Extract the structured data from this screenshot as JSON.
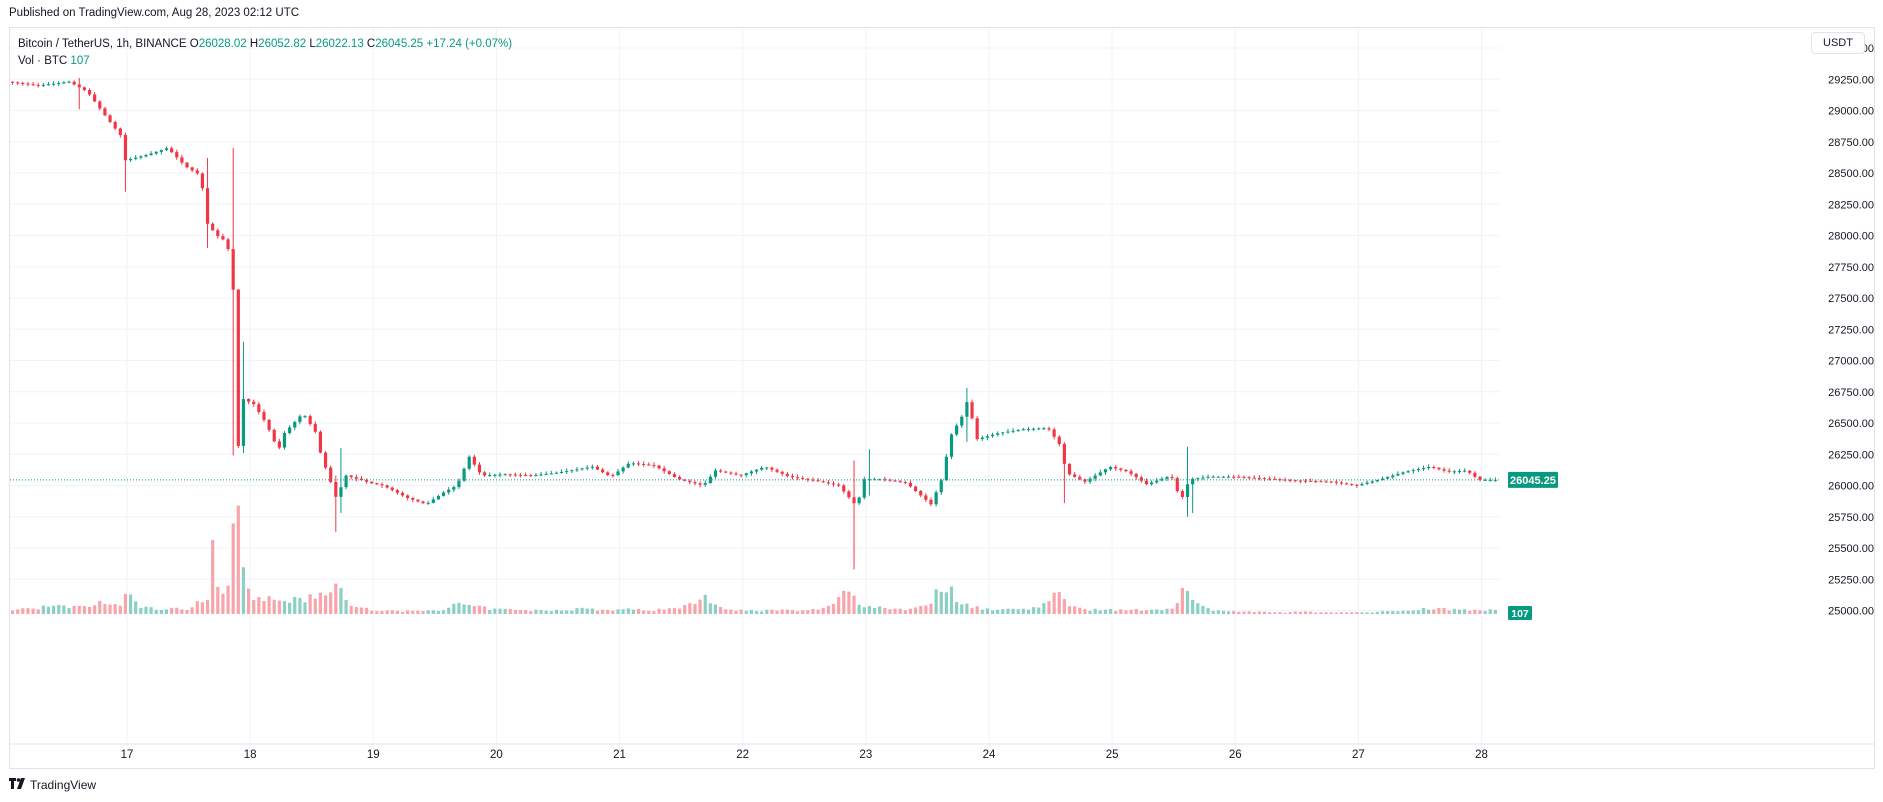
{
  "header": {
    "published": "Published on TradingView.com, Aug 28, 2023 02:12 UTC"
  },
  "legend": {
    "symbol": "Bitcoin / TetherUS, 1h, BINANCE",
    "o_label": "O",
    "o": "26028.02",
    "h_label": "H",
    "h": "26052.82",
    "l_label": "L",
    "l": "26022.13",
    "c_label": "C",
    "c": "26045.25",
    "change": "+17.24 (+0.07%)",
    "vol_label": "Vol · BTC",
    "vol": "107"
  },
  "price_scale": {
    "currency": "USDT"
  },
  "footer": {
    "brand": "TradingView",
    "logo_icon": "tradingview-logo-icon"
  },
  "colors": {
    "up": "#089981",
    "down": "#f23645",
    "up_vol": "#8ccfc3",
    "down_vol": "#f7a5aa",
    "grid": "#f0f3fa"
  },
  "chart_data": {
    "type": "candlestick",
    "title": "Bitcoin / TetherUS, 1h, BINANCE",
    "y_ticks": [
      "29500.00",
      "29250.00",
      "29000.00",
      "28750.00",
      "28500.00",
      "28250.00",
      "28000.00",
      "27750.00",
      "27500.00",
      "27250.00",
      "27000.00",
      "26750.00",
      "26500.00",
      "26250.00",
      "26000.00",
      "25750.00",
      "25500.00",
      "25250.00",
      "25000.00"
    ],
    "ylim": [
      24860,
      29660
    ],
    "x_ticks": [
      "17",
      "18",
      "19",
      "20",
      "21",
      "22",
      "23",
      "24",
      "25",
      "26",
      "27",
      "28"
    ],
    "x_days": [
      17,
      18,
      19,
      20,
      21,
      22,
      23,
      24,
      25,
      26,
      27,
      28
    ],
    "xlim": [
      16.05,
      28.15
    ],
    "last_price": "26045.25",
    "last_volume": "107",
    "price_path": [
      [
        16.05,
        29230
      ],
      [
        16.3,
        29200
      ],
      [
        16.55,
        29230
      ],
      [
        16.7,
        29150
      ],
      [
        16.85,
        28950
      ],
      [
        16.97,
        28800
      ],
      [
        17.0,
        28600
      ],
      [
        17.2,
        28650
      ],
      [
        17.35,
        28700
      ],
      [
        17.5,
        28550
      ],
      [
        17.62,
        28480
      ],
      [
        17.67,
        28100
      ],
      [
        17.75,
        28000
      ],
      [
        17.83,
        27950
      ],
      [
        17.88,
        27700
      ],
      [
        17.9,
        26900
      ],
      [
        17.92,
        26240
      ],
      [
        17.95,
        26700
      ],
      [
        18.05,
        26650
      ],
      [
        18.15,
        26500
      ],
      [
        18.25,
        26280
      ],
      [
        18.3,
        26420
      ],
      [
        18.45,
        26580
      ],
      [
        18.55,
        26430
      ],
      [
        18.6,
        26230
      ],
      [
        18.65,
        26100
      ],
      [
        18.72,
        25900
      ],
      [
        18.8,
        26080
      ],
      [
        19.0,
        26020
      ],
      [
        19.1,
        26000
      ],
      [
        19.3,
        25900
      ],
      [
        19.45,
        25850
      ],
      [
        19.6,
        25950
      ],
      [
        19.7,
        26000
      ],
      [
        19.8,
        26230
      ],
      [
        19.9,
        26080
      ],
      [
        20.1,
        26090
      ],
      [
        20.3,
        26080
      ],
      [
        20.5,
        26100
      ],
      [
        20.8,
        26150
      ],
      [
        20.95,
        26070
      ],
      [
        21.1,
        26180
      ],
      [
        21.3,
        26160
      ],
      [
        21.5,
        26050
      ],
      [
        21.7,
        26000
      ],
      [
        21.8,
        26120
      ],
      [
        22.0,
        26080
      ],
      [
        22.2,
        26150
      ],
      [
        22.4,
        26070
      ],
      [
        22.6,
        26040
      ],
      [
        22.8,
        26000
      ],
      [
        22.95,
        25830
      ],
      [
        23.0,
        26050
      ],
      [
        23.15,
        26050
      ],
      [
        23.35,
        26020
      ],
      [
        23.55,
        25850
      ],
      [
        23.65,
        26080
      ],
      [
        23.7,
        26380
      ],
      [
        23.8,
        26550
      ],
      [
        23.85,
        26690
      ],
      [
        23.92,
        26370
      ],
      [
        24.1,
        26420
      ],
      [
        24.3,
        26450
      ],
      [
        24.5,
        26460
      ],
      [
        24.6,
        26320
      ],
      [
        24.65,
        26100
      ],
      [
        24.8,
        26030
      ],
      [
        25.0,
        26150
      ],
      [
        25.15,
        26110
      ],
      [
        25.3,
        26010
      ],
      [
        25.5,
        26080
      ],
      [
        25.58,
        25880
      ],
      [
        25.65,
        26050
      ],
      [
        25.8,
        26070
      ],
      [
        26.0,
        26070
      ],
      [
        26.2,
        26060
      ],
      [
        26.5,
        26040
      ],
      [
        26.8,
        26030
      ],
      [
        27.0,
        26000
      ],
      [
        27.2,
        26050
      ],
      [
        27.4,
        26110
      ],
      [
        27.6,
        26150
      ],
      [
        27.75,
        26110
      ],
      [
        27.9,
        26120
      ],
      [
        28.0,
        26045
      ],
      [
        28.15,
        26045
      ]
    ],
    "wick_extremes": [
      [
        16.62,
        29260,
        29010
      ],
      [
        16.98,
        28680,
        28350
      ],
      [
        17.65,
        28620,
        27900
      ],
      [
        17.88,
        28700,
        26240
      ],
      [
        17.93,
        27150,
        26260
      ],
      [
        18.7,
        26080,
        25630
      ],
      [
        18.75,
        26300,
        25780
      ],
      [
        22.9,
        26200,
        25330
      ],
      [
        23.02,
        26290,
        25920
      ],
      [
        23.83,
        26780,
        26350
      ],
      [
        24.6,
        26200,
        25860
      ],
      [
        25.6,
        26310,
        25750
      ],
      [
        25.67,
        26020,
        25780
      ]
    ],
    "volume_max_label": 2600,
    "volume_path": [
      [
        16.05,
        90
      ],
      [
        16.4,
        180
      ],
      [
        16.6,
        150
      ],
      [
        16.8,
        260
      ],
      [
        16.95,
        200
      ],
      [
        17.0,
        520
      ],
      [
        17.1,
        160
      ],
      [
        17.3,
        110
      ],
      [
        17.5,
        130
      ],
      [
        17.6,
        330
      ],
      [
        17.65,
        330
      ],
      [
        17.7,
        1500
      ],
      [
        17.75,
        700
      ],
      [
        17.8,
        140
      ],
      [
        17.88,
        2600
      ],
      [
        17.93,
        1950
      ],
      [
        17.97,
        900
      ],
      [
        18.05,
        300
      ],
      [
        18.2,
        360
      ],
      [
        18.4,
        300
      ],
      [
        18.55,
        470
      ],
      [
        18.65,
        420
      ],
      [
        18.72,
        850
      ],
      [
        18.8,
        170
      ],
      [
        19.0,
        100
      ],
      [
        19.2,
        60
      ],
      [
        19.4,
        80
      ],
      [
        19.6,
        110
      ],
      [
        19.7,
        260
      ],
      [
        19.8,
        170
      ],
      [
        20.0,
        110
      ],
      [
        20.3,
        80
      ],
      [
        20.5,
        90
      ],
      [
        20.7,
        130
      ],
      [
        20.9,
        90
      ],
      [
        21.1,
        110
      ],
      [
        21.3,
        90
      ],
      [
        21.5,
        180
      ],
      [
        21.65,
        280
      ],
      [
        21.7,
        440
      ],
      [
        21.8,
        180
      ],
      [
        22.0,
        80
      ],
      [
        22.3,
        90
      ],
      [
        22.5,
        70
      ],
      [
        22.7,
        160
      ],
      [
        22.8,
        500
      ],
      [
        22.88,
        660
      ],
      [
        22.95,
        180
      ],
      [
        23.1,
        170
      ],
      [
        23.3,
        110
      ],
      [
        23.5,
        210
      ],
      [
        23.6,
        580
      ],
      [
        23.67,
        700
      ],
      [
        23.72,
        360
      ],
      [
        23.8,
        250
      ],
      [
        24.0,
        100
      ],
      [
        24.3,
        120
      ],
      [
        24.45,
        240
      ],
      [
        24.55,
        440
      ],
      [
        24.65,
        260
      ],
      [
        24.8,
        110
      ],
      [
        25.0,
        100
      ],
      [
        25.2,
        90
      ],
      [
        25.4,
        110
      ],
      [
        25.5,
        170
      ],
      [
        25.58,
        700
      ],
      [
        25.65,
        280
      ],
      [
        25.8,
        100
      ],
      [
        26.0,
        60
      ],
      [
        26.3,
        40
      ],
      [
        26.6,
        50
      ],
      [
        26.9,
        40
      ],
      [
        27.1,
        40
      ],
      [
        27.3,
        70
      ],
      [
        27.55,
        130
      ],
      [
        27.8,
        110
      ],
      [
        28.0,
        107
      ],
      [
        28.15,
        80
      ]
    ]
  }
}
